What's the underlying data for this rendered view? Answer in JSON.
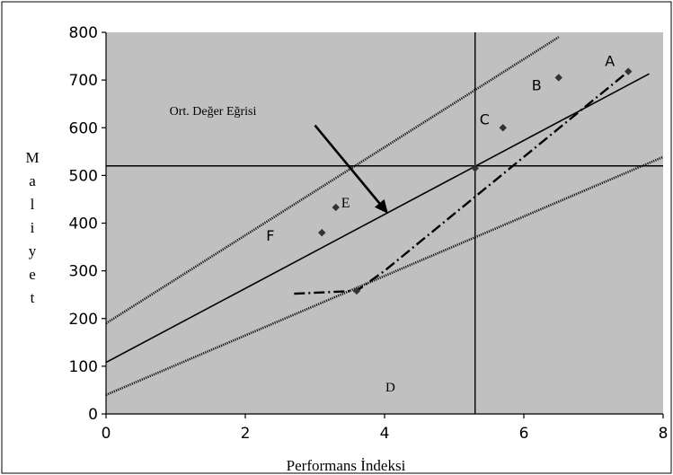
{
  "chart_data": {
    "type": "scatter",
    "xlabel": "Performans İndeksi",
    "ylabel": [
      "M",
      "a",
      "l",
      "i",
      "y",
      "e",
      "t"
    ],
    "xlim": [
      0,
      8
    ],
    "ylim": [
      0,
      800
    ],
    "x_ticks": [
      "0",
      "2",
      "4",
      "6",
      "8"
    ],
    "y_ticks": [
      "0",
      "100",
      "200",
      "300",
      "400",
      "500",
      "600",
      "700",
      "800"
    ],
    "grid": false,
    "background": "#c0c0c0",
    "marker_color": "#333333",
    "points": [
      {
        "label": "A",
        "x": 7.5,
        "y": 718
      },
      {
        "label": "B",
        "x": 6.5,
        "y": 705
      },
      {
        "label": "C",
        "x": 5.7,
        "y": 600
      },
      {
        "label": "D",
        "x": 3.6,
        "y": 258
      },
      {
        "label": "E",
        "x": 3.3,
        "y": 433
      },
      {
        "label": "F",
        "x": 3.1,
        "y": 380
      },
      {
        "label": "",
        "x": 5.3,
        "y": 515
      }
    ],
    "lines": [
      {
        "name": "Ort. Değer Eğrisi",
        "style": "solid",
        "x": [
          0,
          7.8
        ],
        "y": [
          108,
          713
        ]
      },
      {
        "name": "",
        "style": "dotted",
        "x": [
          0,
          6.5
        ],
        "y": [
          190,
          790
        ]
      },
      {
        "name": "",
        "style": "dotted",
        "x": [
          0,
          8.1
        ],
        "y": [
          40,
          545
        ]
      },
      {
        "name": "",
        "style": "dashdot",
        "x": [
          2.7,
          3.6,
          4.0,
          7.5
        ],
        "y": [
          252,
          258,
          300,
          718
        ]
      }
    ],
    "reference_lines": {
      "vertical_x": 5.3,
      "horizontal_y": 520
    },
    "annotation": {
      "text": "Ort. Değer Eğrisi",
      "arrow_from": [
        3.0,
        605
      ],
      "arrow_to": [
        4.05,
        420
      ]
    }
  }
}
